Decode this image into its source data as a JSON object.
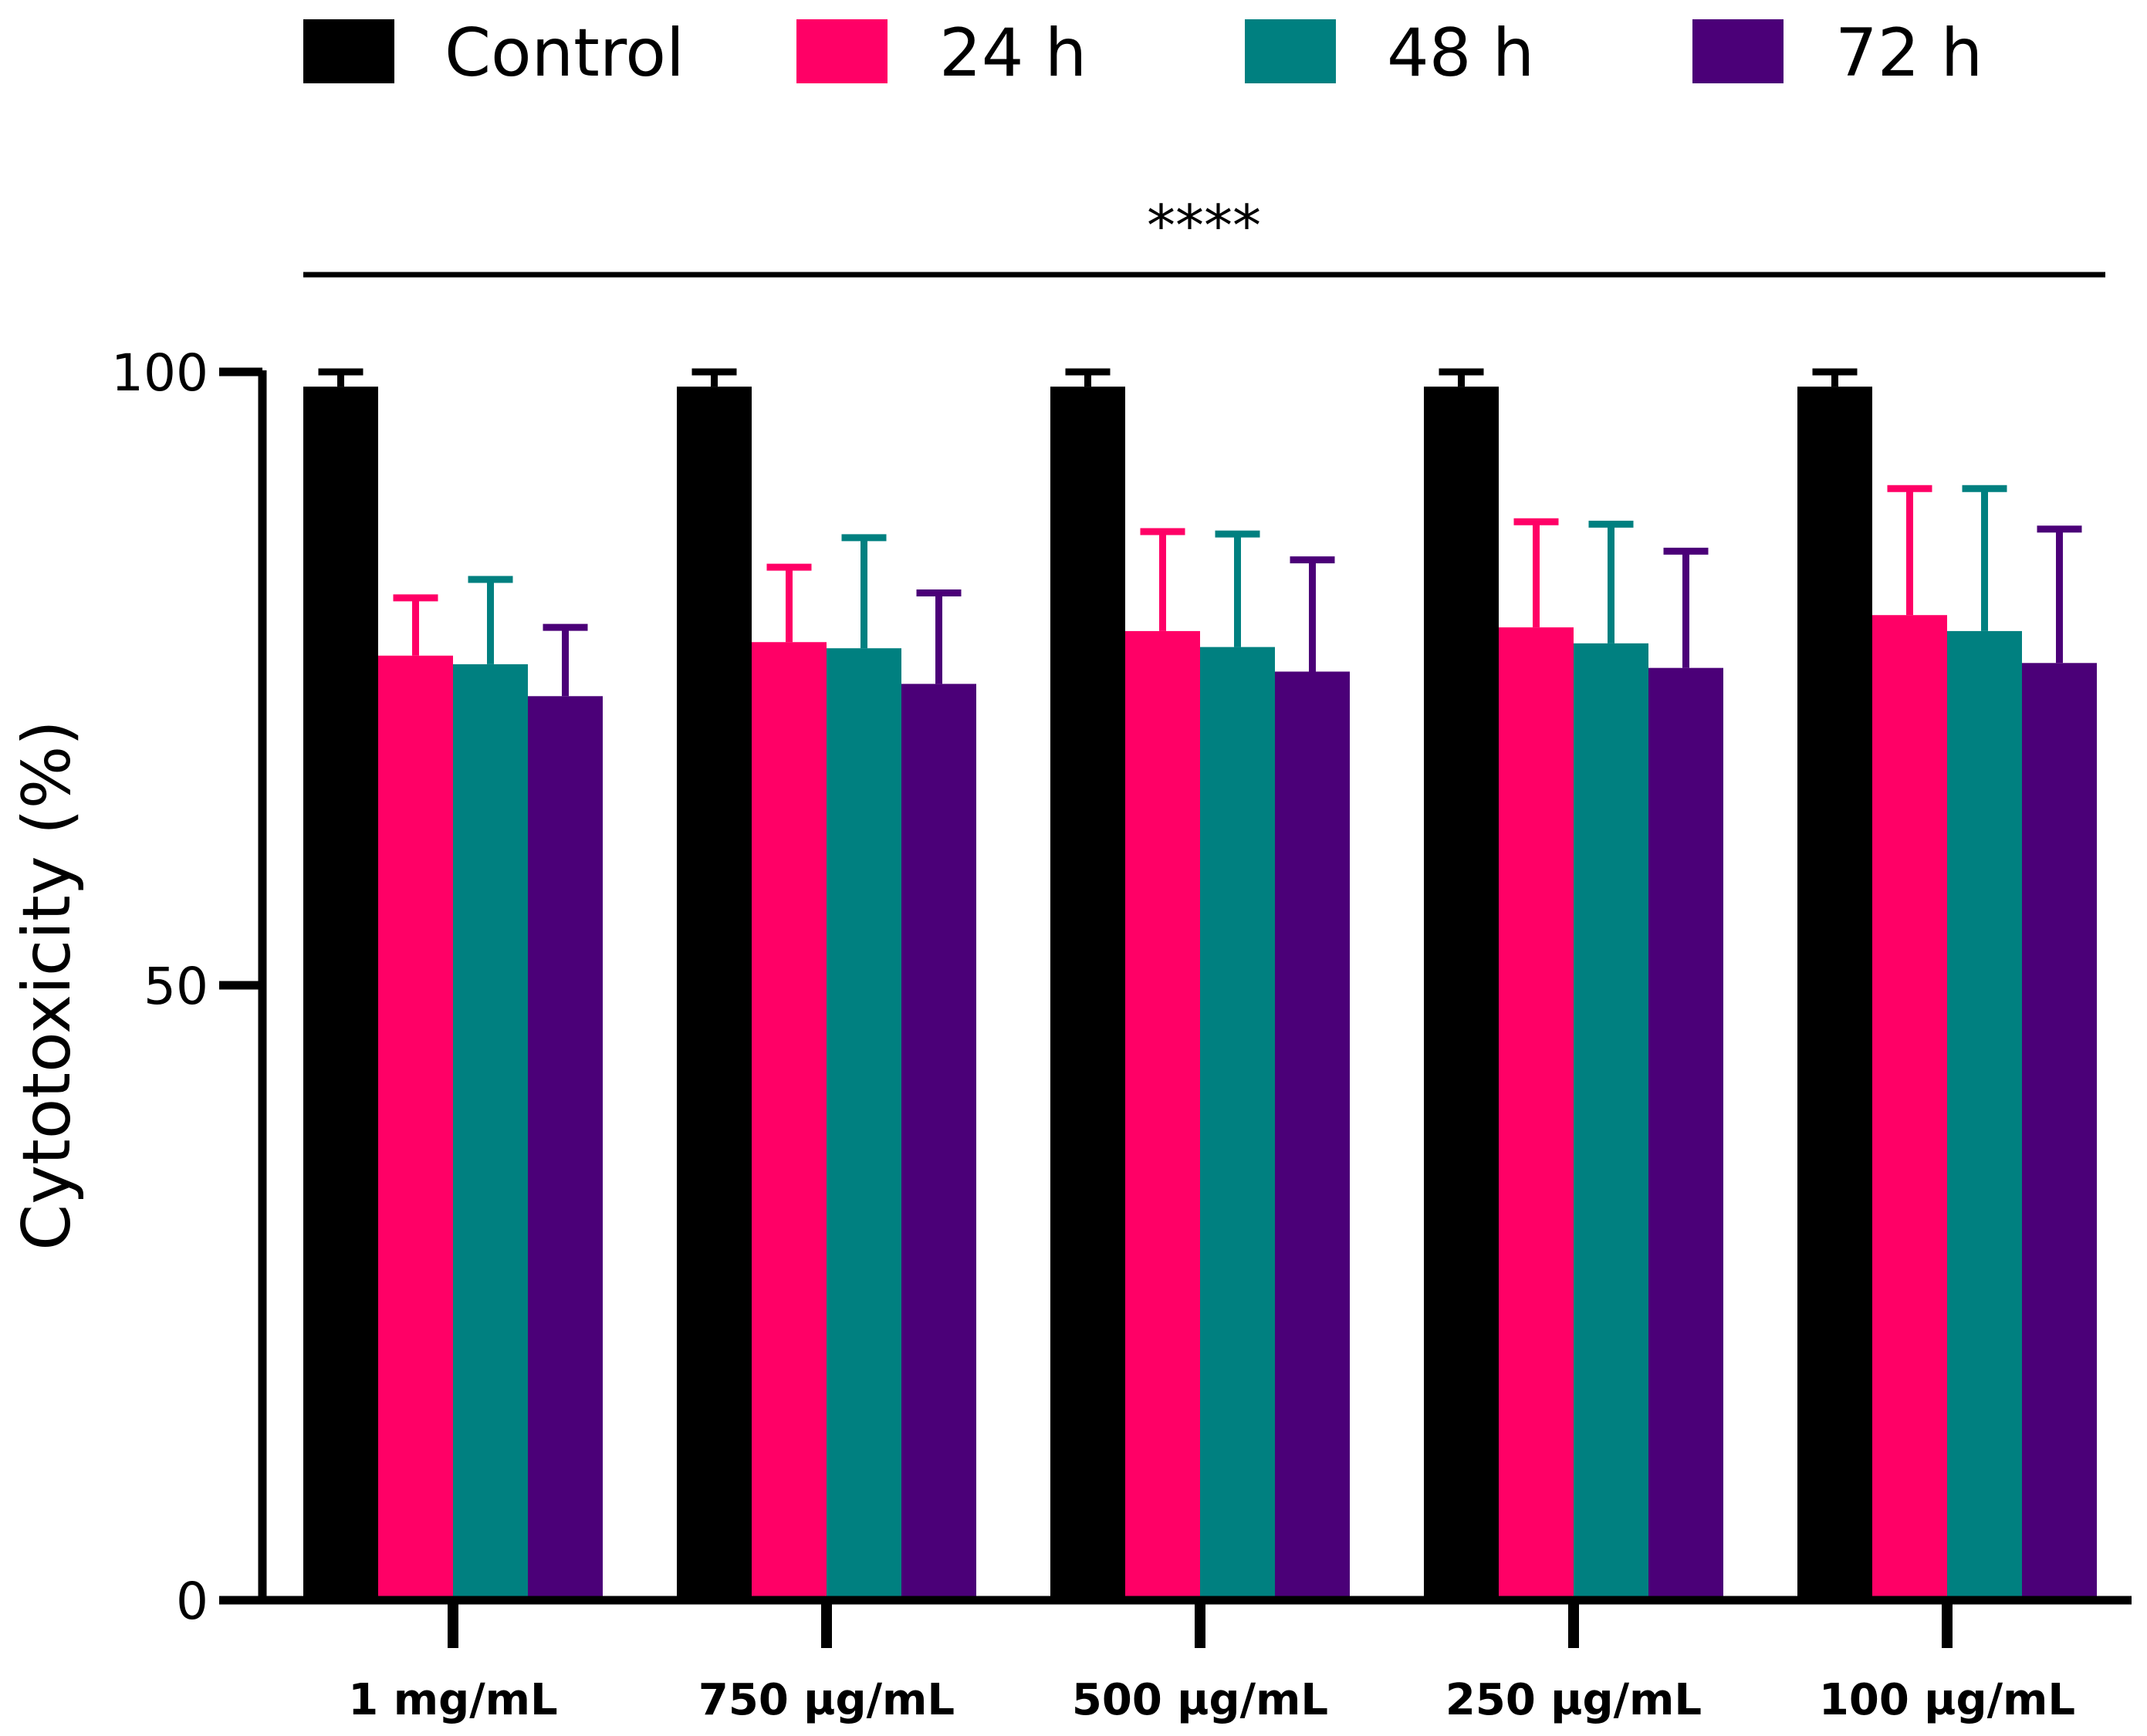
{
  "chart_data": {
    "type": "bar",
    "title": "",
    "xlabel": "",
    "ylabel": "Cytotoxicity (%)",
    "ylim": [
      0,
      100
    ],
    "yticks": [
      "0",
      "50",
      "100"
    ],
    "categories": [
      "1 mg/mL",
      "750 µg/mL",
      "500 µg/mL",
      "250 µg/mL",
      "100 µg/mL"
    ],
    "series": [
      {
        "name": "Control",
        "color": "#000000",
        "values": [
          98.8,
          98.8,
          98.8,
          98.8,
          98.8
        ],
        "errors": [
          1.2,
          1.2,
          1.2,
          1.2,
          1.2
        ]
      },
      {
        "name": "24 h",
        "color": "#ff0066",
        "values": [
          76.9,
          78.0,
          78.9,
          79.2,
          80.2
        ],
        "errors": [
          4.7,
          6.1,
          8.1,
          8.6,
          10.3
        ]
      },
      {
        "name": "48 h",
        "color": "#008080",
        "values": [
          76.2,
          77.5,
          77.6,
          77.9,
          78.9
        ],
        "errors": [
          6.9,
          9.0,
          9.2,
          9.7,
          11.6
        ]
      },
      {
        "name": "72 h",
        "color": "#4b0078",
        "values": [
          73.6,
          74.6,
          75.6,
          75.9,
          76.3
        ],
        "errors": [
          5.6,
          7.4,
          9.1,
          9.5,
          10.9
        ]
      }
    ],
    "legend_position": "top",
    "significance": {
      "label": "****",
      "spans": "all"
    }
  }
}
